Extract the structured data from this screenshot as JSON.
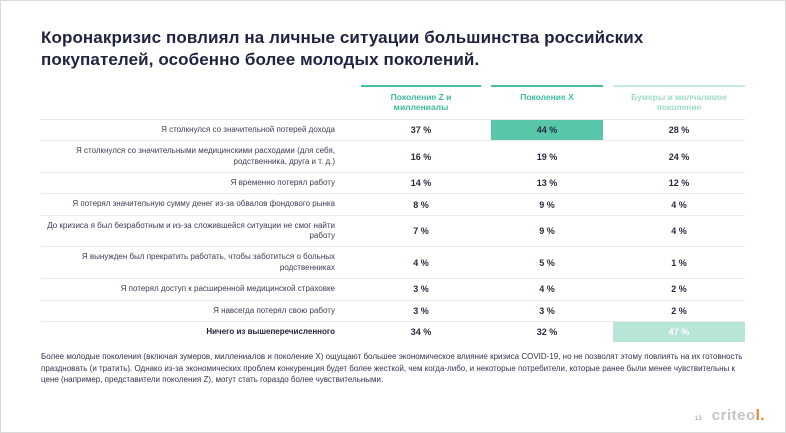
{
  "slide": {
    "title": "Коронакризис повлиял на личные ситуации большинства российских покупателей, особенно более молодых поколений.",
    "footnote": "Более молодые поколения (включая зумеров, миллениалов и поколение X) ощущают большее экономическое влияние кризиса COVID-19, но не позволят этому повлиять на их готовность праздновать (и тратить). Однако из-за экономических проблем конкуренция будет более жесткой, чем когда-либо, и некоторые потребители, которые ранее были менее чувствительны к цене (например, представители поколения Z), могут стать гораздо более чувствительными.",
    "page_number": "13",
    "logo_text": "criteo",
    "logo_accent": "l."
  },
  "colors": {
    "accent_teal": "#44bfa0",
    "accent_teal_light": "#9edcc8",
    "highlight_strong": "#57c6a9",
    "highlight_light": "#b7e5d8",
    "logo_orange": "#f08123"
  },
  "table": {
    "columns": [
      {
        "label": "Поколение Z и миллениалы"
      },
      {
        "label": "Поколение X"
      },
      {
        "label": "Бумеры и молчаливое поколение"
      }
    ],
    "rows": [
      {
        "label": "Я столкнулся со значительной потерей дохода",
        "values": [
          "37 %",
          "44 %",
          "28 %"
        ],
        "highlight": [
          null,
          "strong",
          null
        ],
        "bold": false
      },
      {
        "label": "Я столкнулся со значительными медицинскими расходами (для себя, родственника, друга и т. д.)",
        "values": [
          "16 %",
          "19 %",
          "24 %"
        ],
        "highlight": [
          null,
          null,
          null
        ],
        "bold": false
      },
      {
        "label": "Я временно потерял работу",
        "values": [
          "14 %",
          "13 %",
          "12 %"
        ],
        "highlight": [
          null,
          null,
          null
        ],
        "bold": false
      },
      {
        "label": "Я потерял значительную сумму денег из-за обвалов фондового рынка",
        "values": [
          "8 %",
          "9 %",
          "4 %"
        ],
        "highlight": [
          null,
          null,
          null
        ],
        "bold": false
      },
      {
        "label": "До кризиса я был безработным и из-за сложившейся ситуации не смог найти работу",
        "values": [
          "7 %",
          "9 %",
          "4 %"
        ],
        "highlight": [
          null,
          null,
          null
        ],
        "bold": false
      },
      {
        "label": "Я вынужден был прекратить работать, чтобы заботиться о больных родственниках",
        "values": [
          "4 %",
          "5 %",
          "1 %"
        ],
        "highlight": [
          null,
          null,
          null
        ],
        "bold": false
      },
      {
        "label": "Я потерял доступ к расширенной медицинской страховке",
        "values": [
          "3 %",
          "4 %",
          "2 %"
        ],
        "highlight": [
          null,
          null,
          null
        ],
        "bold": false
      },
      {
        "label": "Я навсегда потерял свою работу",
        "values": [
          "3 %",
          "3 %",
          "2 %"
        ],
        "highlight": [
          null,
          null,
          null
        ],
        "bold": false
      },
      {
        "label": "Ничего из вышеперечисленного",
        "values": [
          "34 %",
          "32 %",
          "47 %"
        ],
        "highlight": [
          null,
          null,
          "light"
        ],
        "bold": true
      }
    ]
  },
  "chart_data": {
    "type": "table",
    "title": "Коронакризис повлиял на личные ситуации большинства российских покупателей, особенно более молодых поколений.",
    "categories": [
      "Я столкнулся со значительной потерей дохода",
      "Я столкнулся со значительными медицинскими расходами (для себя, родственника, друга и т. д.)",
      "Я временно потерял работу",
      "Я потерял значительную сумму денег из-за обвалов фондового рынка",
      "До кризиса я был безработным и из-за сложившейся ситуации не смог найти работу",
      "Я вынужден был прекратить работать, чтобы заботиться о больных родственниках",
      "Я потерял доступ к расширенной медицинской страховке",
      "Я навсегда потерял свою работу",
      "Ничего из вышеперечисленного"
    ],
    "series": [
      {
        "name": "Поколение Z и миллениалы",
        "values": [
          37,
          16,
          14,
          8,
          7,
          4,
          3,
          3,
          34
        ]
      },
      {
        "name": "Поколение X",
        "values": [
          44,
          19,
          13,
          9,
          9,
          5,
          4,
          3,
          32
        ]
      },
      {
        "name": "Бумеры и молчаливое поколение",
        "values": [
          28,
          24,
          12,
          4,
          4,
          1,
          2,
          2,
          47
        ]
      }
    ],
    "unit": "%"
  }
}
